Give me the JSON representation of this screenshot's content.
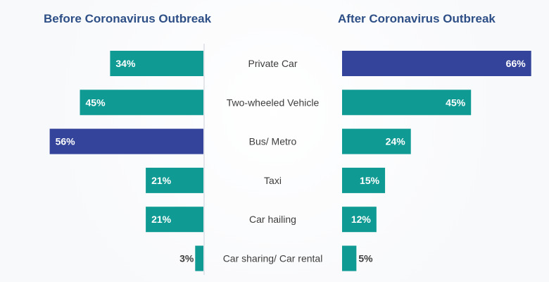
{
  "left_title": "Before Coronavirus Outbreak",
  "right_title": "After Coronavirus Outbreak",
  "colors": {
    "teal": "#0f9b94",
    "navy": "#33449a",
    "title": "#2d4f86",
    "label": "#3d3d3d",
    "divider": "#d9dde5",
    "value_inside": "#ffffff",
    "value_outside": "#3d3d3d"
  },
  "chart_data": {
    "type": "bar",
    "orientation": "horizontal-diverging",
    "categories": [
      "Private Car",
      "Two-wheeled Vehicle",
      "Bus/ Metro",
      "Taxi",
      "Car hailing",
      "Car sharing/ Car rental"
    ],
    "series": [
      {
        "name": "Before Coronavirus Outbreak",
        "values": [
          34,
          45,
          56,
          21,
          21,
          3
        ],
        "labels": [
          "34%",
          "45%",
          "56%",
          "21%",
          "21%",
          "3%"
        ],
        "highlight_index": 2
      },
      {
        "name": "After Coronavirus Outbreak",
        "values": [
          66,
          45,
          24,
          15,
          12,
          5
        ],
        "labels": [
          "66%",
          "45%",
          "24%",
          "15%",
          "12%",
          "5%"
        ],
        "highlight_index": 0
      }
    ],
    "title": "",
    "xlabel": "",
    "ylabel": "",
    "xlim": [
      0,
      70
    ],
    "grid": false,
    "legend": "none"
  }
}
